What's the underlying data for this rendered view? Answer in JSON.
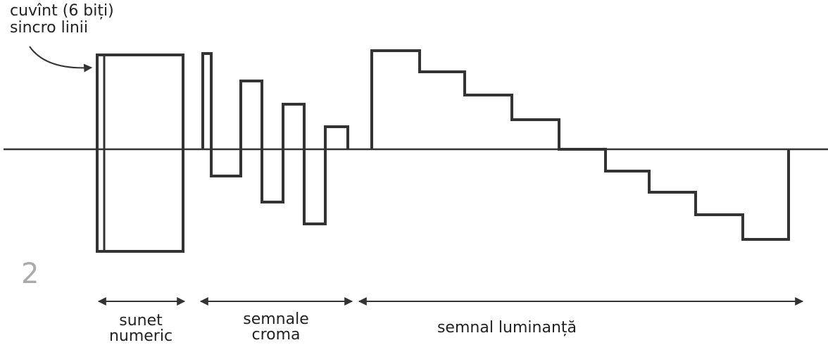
{
  "annotation": [
    "cuvînt (6 biți)",
    "sincro linii"
  ],
  "figure_number": "2",
  "segments": [
    {
      "lines": [
        "sunet",
        "numeric"
      ]
    },
    {
      "lines": [
        "semnale",
        "croma"
      ]
    },
    {
      "lines": [
        "semnal luminanță"
      ]
    }
  ]
}
